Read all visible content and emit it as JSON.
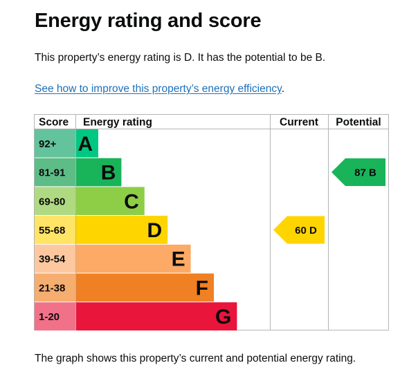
{
  "page": {
    "heading": "Energy rating and score",
    "summary": "This property’s energy rating is D. It has the potential to be B.",
    "improve_link": "See how to improve this property’s energy efficiency",
    "improve_link_suffix": ".",
    "footer": "The graph shows this property’s current and potential energy rating."
  },
  "chart_data": {
    "type": "bar",
    "columns": {
      "score": "Score",
      "rating": "Energy rating",
      "current": "Current",
      "potential": "Potential"
    },
    "bands": [
      {
        "letter": "A",
        "range": "92+",
        "scale": 1,
        "color": "#00c781",
        "score_color": "#63c39c",
        "letter_color": "#0b0c0c"
      },
      {
        "letter": "B",
        "range": "81-91",
        "scale": 2,
        "color": "#19b459",
        "score_color": "#5ebc86",
        "letter_color": "#0b0c0c"
      },
      {
        "letter": "C",
        "range": "69-80",
        "scale": 3,
        "color": "#8dce46",
        "score_color": "#b0da82",
        "letter_color": "#0b0c0c"
      },
      {
        "letter": "D",
        "range": "55-68",
        "scale": 4,
        "color": "#ffd500",
        "score_color": "#ffe466",
        "letter_color": "#0b0c0c"
      },
      {
        "letter": "E",
        "range": "39-54",
        "scale": 5,
        "color": "#fcaa65",
        "score_color": "#fdc8a0",
        "letter_color": "#0b0c0c"
      },
      {
        "letter": "F",
        "range": "21-38",
        "scale": 6,
        "color": "#ef8023",
        "score_color": "#f5ad70",
        "letter_color": "#0b0c0c"
      },
      {
        "letter": "G",
        "range": "1-20",
        "scale": 7,
        "color": "#e9153b",
        "score_color": "#f17189",
        "letter_color": "#0b0c0c"
      }
    ],
    "current": {
      "score": 60,
      "band": "D",
      "label": "60  D",
      "color": "#ffd500"
    },
    "potential": {
      "score": 87,
      "band": "B",
      "label": "87  B",
      "color": "#19b459"
    },
    "border_color": "#b1b4b6"
  }
}
